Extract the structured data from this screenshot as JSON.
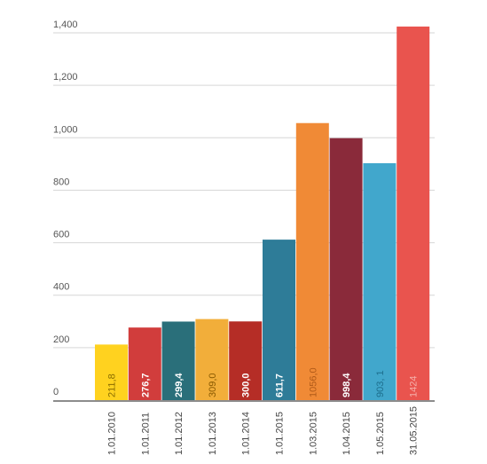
{
  "chart_data": {
    "type": "bar",
    "title": "",
    "xlabel": "",
    "ylabel": "",
    "ylim": [
      0,
      1400
    ],
    "yticks": [
      "0",
      "200",
      "400",
      "600",
      "800",
      "1,000",
      "1,200",
      "1,400"
    ],
    "grid": true,
    "categories": [
      "1.01.2010",
      "1.01.2011",
      "1.01.2012",
      "1.01.2013",
      "1.01.2014",
      "1.01.2015",
      "1.03.2015",
      "1.04.2015",
      "1.05.2015",
      "31.05.2015"
    ],
    "values": [
      211.8,
      276.7,
      299.4,
      309.0,
      300.0,
      611.7,
      1056.0,
      998.4,
      903.1,
      1424
    ],
    "labels": [
      "211,8",
      "276,7",
      "299,4",
      "309,0",
      "300,0",
      "611,7",
      "1056,0",
      "998,4",
      "903, 1",
      "1424"
    ],
    "colors": [
      "#FFD21F",
      "#D13D3C",
      "#2A6F7A",
      "#F2AE3A",
      "#B52D26",
      "#2E7C98",
      "#F08A36",
      "#8A2A3A",
      "#41A7CC",
      "#E9544E"
    ],
    "label_colors": [
      "#8a6d00",
      "#ffffff",
      "#ffffff",
      "#8a5a00",
      "#ffffff",
      "#ffffff",
      "#b05a18",
      "#ffffff",
      "#1d6f8e",
      "#f5b0aa"
    ]
  }
}
